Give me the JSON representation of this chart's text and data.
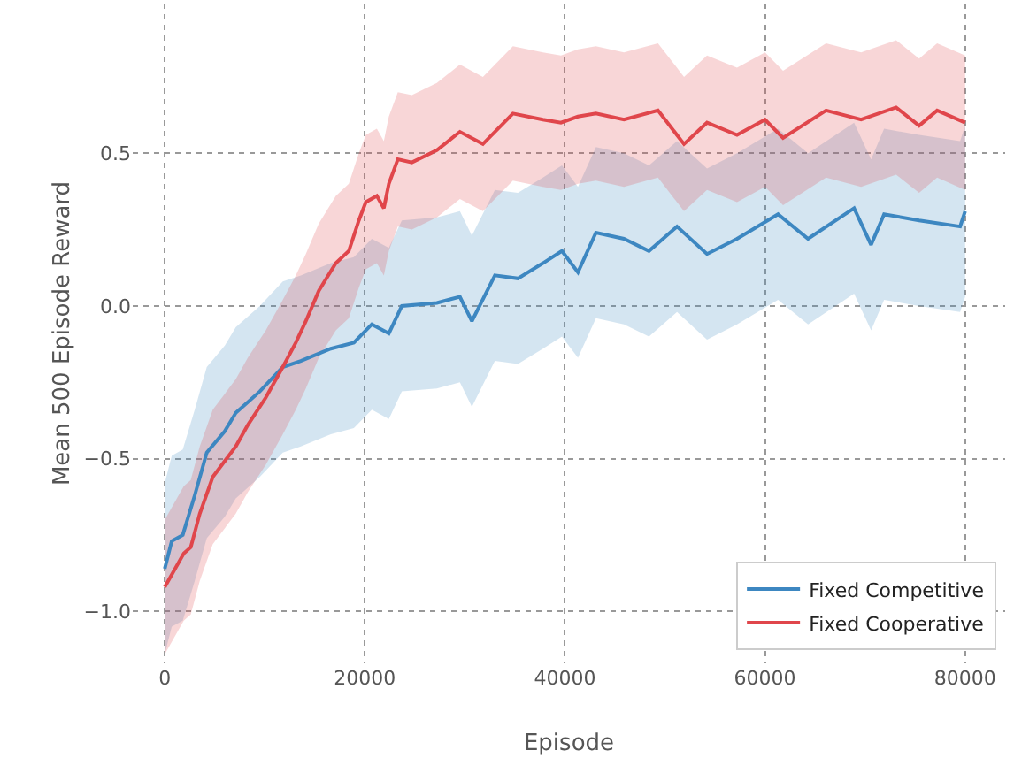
{
  "chart_data": {
    "type": "line",
    "xlabel": "Episode",
    "ylabel": "Mean 500 Episode Reward",
    "xlim": [
      -3200,
      84000
    ],
    "xticks": [
      0,
      20000,
      40000,
      60000,
      80000
    ],
    "ylim": [
      -1.17,
      0.99
    ],
    "yticks": [
      {
        "value": -1.0,
        "label": "−1.0"
      },
      {
        "value": -0.5,
        "label": "−0.5"
      },
      {
        "value": 0.0,
        "label": "0.0"
      },
      {
        "value": 0.5,
        "label": "0.5"
      }
    ],
    "grid": true,
    "legend": "bottom right",
    "line_style": "solid",
    "marker": "none",
    "series": [
      {
        "name": "Fixed Competitive",
        "color": "#3d87c1",
        "x": [
          0,
          700,
          1800,
          3000,
          4200,
          6000,
          7100,
          9500,
          11800,
          13600,
          16600,
          18900,
          20700,
          22400,
          23700,
          27200,
          29500,
          30700,
          33000,
          35300,
          37800,
          39700,
          41300,
          43100,
          45900,
          48400,
          51200,
          54200,
          57200,
          61300,
          64300,
          68900,
          70600,
          71900,
          75400,
          79500,
          80000
        ],
        "values": [
          -0.86,
          -0.77,
          -0.75,
          -0.62,
          -0.48,
          -0.41,
          -0.35,
          -0.28,
          -0.2,
          -0.18,
          -0.14,
          -0.12,
          -0.06,
          -0.09,
          0.0,
          0.01,
          0.03,
          -0.05,
          0.1,
          0.09,
          0.14,
          0.18,
          0.11,
          0.24,
          0.22,
          0.18,
          0.26,
          0.17,
          0.22,
          0.3,
          0.22,
          0.32,
          0.2,
          0.3,
          0.28,
          0.26,
          0.31
        ],
        "lower": [
          -1.14,
          -1.05,
          -1.03,
          -0.9,
          -0.76,
          -0.69,
          -0.63,
          -0.56,
          -0.48,
          -0.46,
          -0.42,
          -0.4,
          -0.34,
          -0.37,
          -0.28,
          -0.27,
          -0.25,
          -0.33,
          -0.18,
          -0.19,
          -0.14,
          -0.1,
          -0.17,
          -0.04,
          -0.06,
          -0.1,
          -0.02,
          -0.11,
          -0.06,
          0.02,
          -0.06,
          0.04,
          -0.08,
          0.02,
          0.0,
          -0.02,
          0.03
        ],
        "upper": [
          -0.58,
          -0.49,
          -0.47,
          -0.34,
          -0.2,
          -0.13,
          -0.07,
          0.0,
          0.08,
          0.1,
          0.14,
          0.16,
          0.22,
          0.19,
          0.28,
          0.29,
          0.31,
          0.23,
          0.38,
          0.37,
          0.42,
          0.46,
          0.39,
          0.52,
          0.5,
          0.46,
          0.54,
          0.45,
          0.5,
          0.58,
          0.5,
          0.6,
          0.48,
          0.58,
          0.56,
          0.54,
          0.59
        ]
      },
      {
        "name": "Fixed Cooperative",
        "color": "#e0464b",
        "x": [
          0,
          1900,
          2600,
          3500,
          4800,
          7100,
          8300,
          10100,
          11800,
          13100,
          14100,
          15400,
          17100,
          18400,
          19400,
          20100,
          21200,
          21900,
          22400,
          23300,
          24700,
          27200,
          29500,
          31800,
          34800,
          37800,
          39600,
          41300,
          43100,
          45900,
          49300,
          51900,
          54200,
          57200,
          60000,
          61800,
          66100,
          69600,
          73100,
          75400,
          77200,
          80000
        ],
        "values": [
          -0.92,
          -0.81,
          -0.79,
          -0.68,
          -0.56,
          -0.46,
          -0.39,
          -0.3,
          -0.2,
          -0.12,
          -0.05,
          0.05,
          0.14,
          0.18,
          0.28,
          0.34,
          0.36,
          0.32,
          0.4,
          0.48,
          0.47,
          0.51,
          0.57,
          0.53,
          0.63,
          0.61,
          0.6,
          0.62,
          0.63,
          0.61,
          0.64,
          0.53,
          0.6,
          0.56,
          0.61,
          0.55,
          0.64,
          0.61,
          0.65,
          0.59,
          0.64,
          0.6
        ],
        "lower": [
          -1.14,
          -1.03,
          -1.01,
          -0.9,
          -0.78,
          -0.68,
          -0.61,
          -0.52,
          -0.42,
          -0.34,
          -0.27,
          -0.17,
          -0.08,
          -0.04,
          0.06,
          0.12,
          0.14,
          0.1,
          0.18,
          0.26,
          0.25,
          0.29,
          0.35,
          0.31,
          0.41,
          0.39,
          0.38,
          0.4,
          0.41,
          0.39,
          0.42,
          0.31,
          0.38,
          0.34,
          0.39,
          0.33,
          0.42,
          0.39,
          0.43,
          0.37,
          0.42,
          0.38
        ],
        "upper": [
          -0.7,
          -0.59,
          -0.57,
          -0.46,
          -0.34,
          -0.24,
          -0.17,
          -0.08,
          0.02,
          0.1,
          0.17,
          0.27,
          0.36,
          0.4,
          0.5,
          0.56,
          0.58,
          0.54,
          0.62,
          0.7,
          0.69,
          0.73,
          0.79,
          0.75,
          0.85,
          0.83,
          0.82,
          0.84,
          0.85,
          0.83,
          0.86,
          0.75,
          0.82,
          0.78,
          0.83,
          0.77,
          0.86,
          0.83,
          0.87,
          0.81,
          0.86,
          0.82
        ]
      }
    ]
  }
}
